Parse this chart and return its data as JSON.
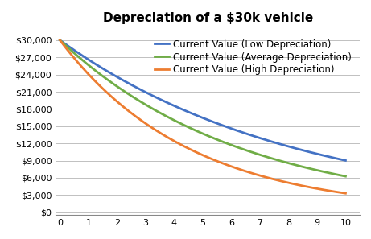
{
  "title": "Depreciation of a $30k vehicle",
  "initial_value": 30000,
  "years": 10,
  "low_rate": 0.1132,
  "avg_rate": 0.145,
  "high_rate": 0.198,
  "line_colors": {
    "low": "#4472C4",
    "avg": "#70AD47",
    "high": "#ED7D31"
  },
  "legend_labels": {
    "low": "Current Value (Low Depreciation)",
    "avg": "Current Value (Average Depreciation)",
    "high": "Current Value (High Depreciation)"
  },
  "yticks": [
    0,
    3000,
    6000,
    9000,
    12000,
    15000,
    18000,
    21000,
    24000,
    27000,
    30000
  ],
  "ylim": [
    -500,
    32000
  ],
  "xlim": [
    -0.15,
    10.5
  ],
  "xticks": [
    0,
    1,
    2,
    3,
    4,
    5,
    6,
    7,
    8,
    9,
    10
  ],
  "line_width": 2.0,
  "bg_color": "#FFFFFF",
  "grid_color": "#C0C0C0",
  "title_fontsize": 11,
  "tick_fontsize": 8,
  "legend_fontsize": 8.5
}
